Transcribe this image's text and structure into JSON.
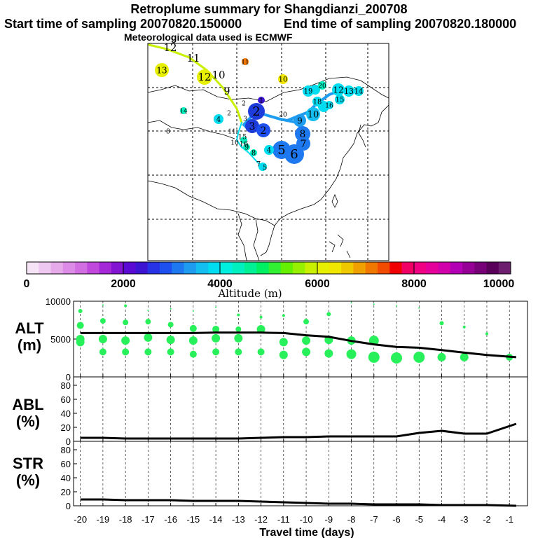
{
  "header": {
    "title": "Retroplume summary for Shangdianzi_200708",
    "start_label": "Start time of sampling 20070820.150000",
    "end_label": "End time of sampling 20070820.180000",
    "met_label": "Meteorological data used is ECMWF"
  },
  "colors": {
    "dark_blue": "#1e3cdc",
    "mid_blue": "#1e8cf0",
    "cyan": "#00dcf0",
    "teal": "#00f0c8",
    "green": "#28f064",
    "yellow": "#e6f000",
    "orange": "#f08c00",
    "points_green": "#28f05a"
  },
  "colorbar": {
    "ticks": [
      "0",
      "2000",
      "4000",
      "6000",
      "8000",
      "10000"
    ],
    "label": "Altitude  (m)",
    "colors": [
      "#f6e4f6",
      "#eec8f0",
      "#e6aaea",
      "#dc8ce6",
      "#d26ee2",
      "#c048dc",
      "#a528d8",
      "#8214d2",
      "#5a0ad2",
      "#3c14d2",
      "#2832e6",
      "#1e50f0",
      "#1e78f0",
      "#1e9cf0",
      "#14bef0",
      "#00dcf0",
      "#00f0e0",
      "#00f0c0",
      "#00f096",
      "#00f064",
      "#32f032",
      "#64f000",
      "#96f000",
      "#c8f000",
      "#e6f000",
      "#f0e600",
      "#f0c800",
      "#f0a000",
      "#f07800",
      "#f04b00",
      "#f00000",
      "#f00064",
      "#f00082",
      "#e6009b",
      "#d200aa",
      "#b400b4",
      "#960096",
      "#780078",
      "#5a005a",
      "#6e1e6e"
    ]
  },
  "map": {
    "labels": {
      "mid": [
        {
          "t": "2",
          "c": "dark_blue"
        },
        {
          "t": "3",
          "c": "dark_blue"
        },
        {
          "t": "2",
          "c": "dark_blue"
        },
        {
          "t": "5",
          "c": "mid_blue"
        },
        {
          "t": "6",
          "c": "mid_blue"
        },
        {
          "t": "7",
          "c": "mid_blue"
        },
        {
          "t": "8",
          "c": "mid_blue"
        },
        {
          "t": "9",
          "c": "mid_blue"
        },
        {
          "t": "10",
          "c": "cyan"
        },
        {
          "t": "12",
          "c": "cyan"
        },
        {
          "t": "13",
          "c": "cyan"
        },
        {
          "t": "14",
          "c": "cyan"
        },
        {
          "t": "15",
          "c": "cyan"
        },
        {
          "t": "16",
          "c": "cyan"
        },
        {
          "t": "18",
          "c": "cyan"
        },
        {
          "t": "19",
          "c": "cyan"
        },
        {
          "t": "20",
          "c": "cyan"
        },
        {
          "t": "1",
          "c": "dark_blue"
        }
      ],
      "low": [
        {
          "t": "4",
          "c": "cyan"
        },
        {
          "t": "4",
          "c": "cyan"
        },
        {
          "t": "5",
          "c": "cyan"
        },
        {
          "t": "7",
          "c": "cyan"
        },
        {
          "t": "8",
          "c": "teal"
        },
        {
          "t": "9",
          "c": "teal"
        },
        {
          "t": "10",
          "c": "teal"
        },
        {
          "t": "11",
          "c": "teal"
        },
        {
          "t": "15",
          "c": "teal"
        },
        {
          "t": "16",
          "c": "teal"
        },
        {
          "t": "14",
          "c": "teal"
        }
      ],
      "high": [
        {
          "t": "9",
          "c": "green"
        },
        {
          "t": "10",
          "c": "yellow"
        },
        {
          "t": "11",
          "c": "yellow"
        },
        {
          "t": "12",
          "c": "yellow"
        },
        {
          "t": "13",
          "c": "yellow"
        },
        {
          "t": "12",
          "c": "yellow"
        }
      ],
      "top": [
        {
          "t": "11",
          "c": "orange"
        },
        {
          "t": "10",
          "c": "yellow"
        },
        {
          "t": "3",
          "c": "green"
        },
        {
          "t": "2",
          "c": "green"
        },
        {
          "t": "2",
          "c": "green"
        },
        {
          "t": "8",
          "c": "orange"
        },
        {
          "t": "20",
          "c": "yellow"
        }
      ]
    }
  },
  "chart_data": [
    {
      "type": "scatter",
      "name": "ALT",
      "ylabel": "ALT\n(m)",
      "ylabel_line1": "ALT",
      "ylabel_line2": "(m)",
      "x": [
        -20,
        -19,
        -18,
        -17,
        -16,
        -15,
        -14,
        -13,
        -12,
        -11,
        -10,
        -9,
        -8,
        -7,
        -6,
        -5,
        -4,
        -3,
        -2,
        -1
      ],
      "xlim": [
        -20.3,
        -0.2
      ],
      "ylim": [
        0,
        10000
      ],
      "yticks": [
        "0",
        "5000",
        "10000"
      ],
      "mean_line": {
        "x": [
          -20,
          -19,
          -18,
          -17,
          -16,
          -15,
          -14,
          -13,
          -12,
          -11,
          -10,
          -9,
          -8,
          -7,
          -6,
          -5,
          -4,
          -3,
          -2,
          -0.7
        ],
        "y": [
          5800,
          5800,
          5800,
          5800,
          5800,
          5800,
          5850,
          5850,
          5850,
          5800,
          5500,
          5300,
          4750,
          4300,
          3950,
          3850,
          3550,
          3200,
          2900,
          2600
        ]
      },
      "points": {
        "x": [
          -20,
          -20,
          -20,
          -20,
          -19,
          -19,
          -19,
          -19,
          -18,
          -18,
          -18,
          -18,
          -17,
          -17,
          -17,
          -17,
          -16,
          -16,
          -16,
          -16,
          -15,
          -15,
          -15,
          -15,
          -14,
          -14,
          -14,
          -14,
          -13,
          -13,
          -13,
          -13,
          -12,
          -12,
          -12,
          -11,
          -11,
          -11,
          -10,
          -10,
          -10,
          -9,
          -9,
          -9,
          -8,
          -8,
          -8,
          -7,
          -7,
          -7,
          -6,
          -6,
          -5,
          -5,
          -4,
          -4,
          -3,
          -3,
          -2,
          -1
        ],
        "y": [
          8700,
          6800,
          5000,
          4600,
          9500,
          7400,
          5000,
          3300,
          9400,
          7200,
          4800,
          3300,
          8800,
          7300,
          5200,
          3300,
          9000,
          6900,
          4900,
          3300,
          8700,
          6400,
          4800,
          3000,
          9200,
          6300,
          5100,
          3300,
          8200,
          6300,
          5100,
          3300,
          7900,
          6300,
          3300,
          8100,
          4600,
          2900,
          7300,
          4800,
          3300,
          8300,
          4900,
          3100,
          9800,
          4800,
          3000,
          9600,
          4800,
          2600,
          9400,
          2500,
          9100,
          2600,
          7100,
          2600,
          6600,
          2600,
          5700,
          2600
        ],
        "size": [
          3,
          5,
          6,
          6,
          1,
          4,
          6,
          5,
          2,
          4,
          6,
          5,
          1,
          4,
          6,
          5,
          1,
          4,
          6,
          5,
          1,
          5,
          6,
          5,
          1,
          5,
          6,
          5,
          2,
          4,
          6,
          5,
          2,
          6,
          5,
          2,
          6,
          6,
          4,
          6,
          6,
          3,
          6,
          6,
          1,
          6,
          7,
          1,
          7,
          8,
          1,
          8,
          1,
          8,
          3,
          6,
          2,
          6,
          2,
          5
        ]
      }
    },
    {
      "type": "line",
      "name": "ABL",
      "ylabel_line1": "ABL",
      "ylabel_line2": "(%)",
      "x": [
        -20,
        -19,
        -18,
        -17,
        -16,
        -15,
        -14,
        -13,
        -12,
        -11,
        -10,
        -9,
        -8,
        -7,
        -6,
        -5,
        -4,
        -3,
        -2,
        -0.7
      ],
      "y": [
        5,
        5,
        4,
        4,
        4,
        4,
        4,
        4,
        5,
        6,
        6,
        7,
        7,
        7,
        7,
        12,
        15,
        11,
        11,
        25
      ],
      "ylim": [
        0,
        90
      ],
      "yticks": [
        "0",
        "20",
        "40",
        "60",
        "80"
      ]
    },
    {
      "type": "line",
      "name": "STR",
      "ylabel_line1": "STR",
      "ylabel_line2": "(%)",
      "x": [
        -20,
        -19,
        -18,
        -17,
        -16,
        -15,
        -14,
        -13,
        -12,
        -11,
        -10,
        -9,
        -8,
        -7,
        -6,
        -5,
        -4,
        -3,
        -2,
        -0.7
      ],
      "y": [
        9,
        9,
        8,
        8,
        8,
        7,
        7,
        7,
        6,
        5,
        4,
        3,
        3,
        2,
        2,
        2,
        1,
        1,
        1,
        0
      ],
      "ylim": [
        0,
        90
      ],
      "yticks": [
        "0",
        "20",
        "40",
        "60",
        "80"
      ],
      "xlabel": "Travel time (days)",
      "xticks": [
        "-20",
        "-19",
        "-18",
        "-17",
        "-16",
        "-15",
        "-14",
        "-13",
        "-12",
        "-11",
        "-10",
        "-9",
        "-8",
        "-7",
        "-6",
        "-5",
        "-4",
        "-3",
        "-2",
        "-1"
      ]
    }
  ]
}
